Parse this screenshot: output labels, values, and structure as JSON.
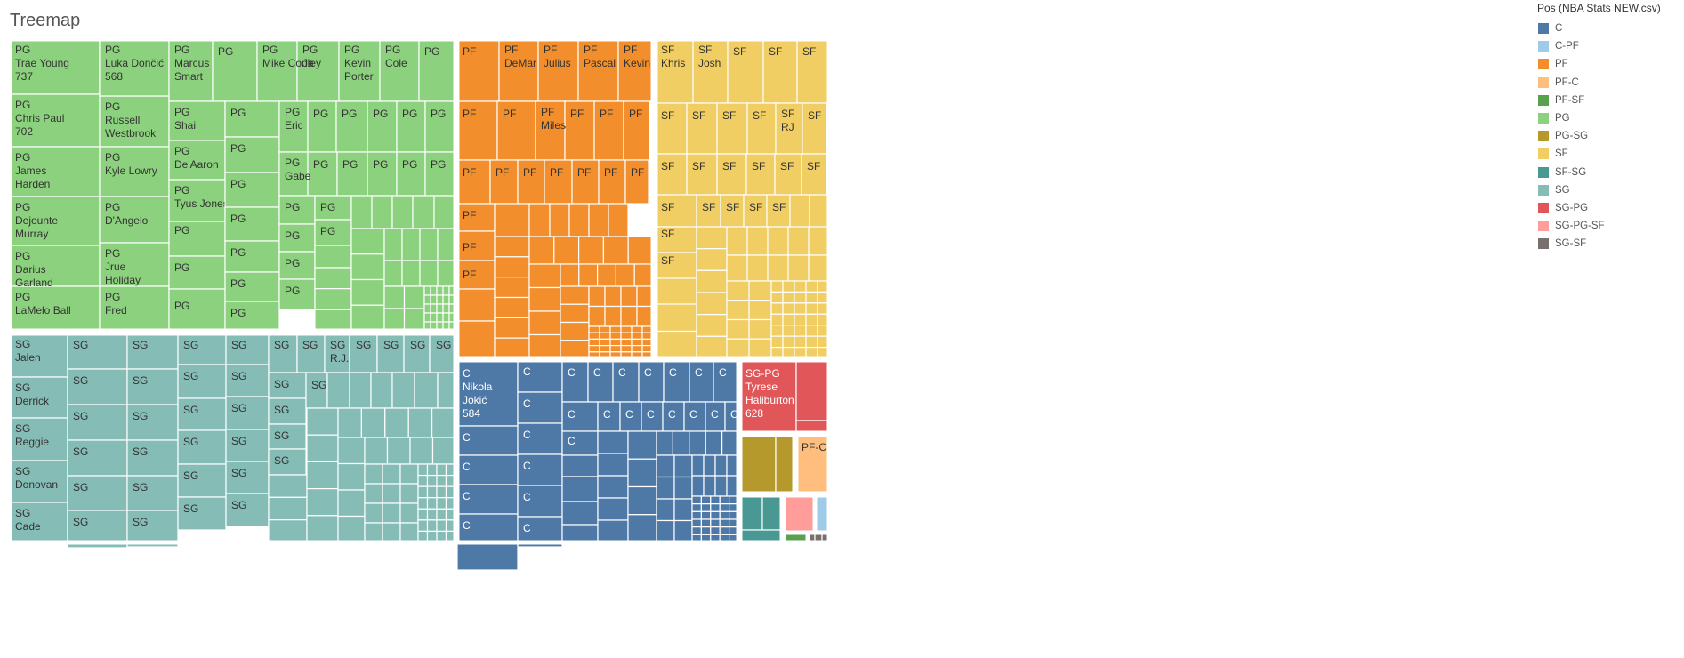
{
  "chart_data": {
    "type": "treemap",
    "title": "Treemap",
    "legend": {
      "title": "Pos (NBA Stats NEW.csv)",
      "placement": "top-right",
      "items": [
        {
          "name": "C",
          "color": "#4e79a7"
        },
        {
          "name": "C-PF",
          "color": "#a0cbe8"
        },
        {
          "name": "PF",
          "color": "#f28e2b"
        },
        {
          "name": "PF-C",
          "color": "#ffbe7d"
        },
        {
          "name": "PF-SF",
          "color": "#59a14f"
        },
        {
          "name": "PG",
          "color": "#8cd17d"
        },
        {
          "name": "PG-SG",
          "color": "#b6992d"
        },
        {
          "name": "SF",
          "color": "#f1ce63"
        },
        {
          "name": "SF-SG",
          "color": "#499894"
        },
        {
          "name": "SG",
          "color": "#86bcb6"
        },
        {
          "name": "SG-PG",
          "color": "#e15759"
        },
        {
          "name": "SG-PG-SF",
          "color": "#ff9d9a"
        },
        {
          "name": "SG-SF",
          "color": "#79706e"
        }
      ]
    },
    "groups": [
      {
        "pos": "PG",
        "labeled_players": [
          {
            "name": "Trae Young",
            "value": 737
          },
          {
            "name": "Chris Paul",
            "value": 702
          },
          {
            "name": "James Harden"
          },
          {
            "name": "Dejounte Murray"
          },
          {
            "name": "Darius Garland"
          },
          {
            "name": "LaMelo Ball"
          },
          {
            "name": "Luka Dončić",
            "value": 568
          },
          {
            "name": "Russell Westbrook"
          },
          {
            "name": "Kyle Lowry"
          },
          {
            "name": "D'Angelo"
          },
          {
            "name": "Jrue Holiday"
          },
          {
            "name": "Fred"
          },
          {
            "name": "Marcus Smart"
          },
          {
            "name": "Shai"
          },
          {
            "name": "De'Aaron"
          },
          {
            "name": "Tyus Jones"
          },
          {
            "name": "Mike Conley"
          },
          {
            "name": "Ja"
          },
          {
            "name": "Kevin Porter"
          },
          {
            "name": "Cole"
          },
          {
            "name": "Eric"
          },
          {
            "name": "Gabe"
          }
        ]
      },
      {
        "pos": "SG",
        "labeled_players": [
          {
            "name": "Jalen"
          },
          {
            "name": "Derrick"
          },
          {
            "name": "Reggie"
          },
          {
            "name": "Donovan"
          },
          {
            "name": "Cade"
          },
          {
            "name": "R.J."
          }
        ]
      },
      {
        "pos": "PF",
        "labeled_players": [
          {
            "name": "DeMar"
          },
          {
            "name": "Julius"
          },
          {
            "name": "Pascal"
          },
          {
            "name": "Kevin"
          },
          {
            "name": "Miles"
          }
        ]
      },
      {
        "pos": "SF",
        "labeled_players": [
          {
            "name": "Khris"
          },
          {
            "name": "Josh"
          },
          {
            "name": "RJ"
          }
        ]
      },
      {
        "pos": "C",
        "labeled_players": [
          {
            "name": "Nikola Jokić",
            "value": 584
          }
        ]
      },
      {
        "pos": "SG-PG",
        "labeled_players": [
          {
            "name": "Tyrese Haliburton",
            "value": 628
          }
        ]
      },
      {
        "pos": "PF-C",
        "labeled_players": []
      }
    ]
  }
}
